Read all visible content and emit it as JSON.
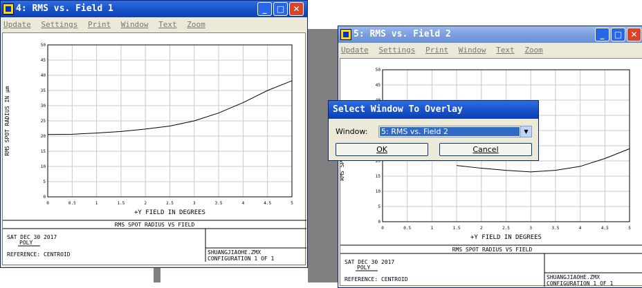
{
  "window1": {
    "title": "4: RMS vs. Field 1",
    "menu": [
      "Update",
      "Settings",
      "Print",
      "Window",
      "Text",
      "Zoom"
    ],
    "footer": {
      "caption": "RMS SPOT RADIUS VS FIELD",
      "date": "SAT DEC 30 2017",
      "mode": "POLY",
      "reference": "REFERENCE: CENTROID",
      "file": "SHUANGJIAOHE.ZMX",
      "config": "CONFIGURATION 1 OF 1"
    }
  },
  "window2": {
    "title": "5: RMS vs. Field 2",
    "menu": [
      "Update",
      "Settings",
      "Print",
      "Window",
      "Text",
      "Zoom"
    ],
    "footer": {
      "caption": "RMS SPOT RADIUS VS FIELD",
      "date": "SAT DEC 30 2017",
      "mode": "POLY",
      "reference": "REFERENCE: CENTROID",
      "file": "SHUANGJIAOHE.ZMX",
      "config": "CONFIGURATION 1 OF 1"
    }
  },
  "dialog": {
    "title": "Select Window To Overlay",
    "label": "Window:",
    "selected": "5: RMS vs. Field 2",
    "ok": "OK",
    "cancel": "Cancel"
  },
  "chart_data": [
    {
      "type": "line",
      "xlabel": "+Y FIELD IN DEGREES",
      "ylabel": "RMS SPOT RADIUS IN µm",
      "xlim": [
        0,
        5
      ],
      "ylim": [
        0,
        50
      ],
      "xticks": [
        "0",
        "0.5",
        "1",
        "1.5",
        "2",
        "2.5",
        "3",
        "3.5",
        "4",
        "4.5",
        "5"
      ],
      "yticks": [
        "0",
        "5",
        "10",
        "15",
        "20",
        "25",
        "30",
        "35",
        "40",
        "45",
        "50"
      ],
      "grid": true,
      "series": [
        {
          "x": [
            0,
            0.5,
            1,
            1.5,
            2,
            2.5,
            3,
            3.5,
            4,
            4.5,
            5
          ],
          "y": [
            20.5,
            20.6,
            21.0,
            21.5,
            22.3,
            23.3,
            25.0,
            27.6,
            31.0,
            35.0,
            38.2
          ]
        }
      ]
    },
    {
      "type": "line",
      "xlabel": "+Y FIELD IN DEGREES",
      "ylabel": "RMS SPOT RADIUS IN µm",
      "xlim": [
        0,
        5
      ],
      "ylim": [
        0,
        50
      ],
      "xticks": [
        "0",
        "0.5",
        "1",
        "1.5",
        "2",
        "2.5",
        "3",
        "3.5",
        "4",
        "4.5",
        "5"
      ],
      "yticks": [
        "0",
        "5",
        "10",
        "15",
        "20",
        "25",
        "30",
        "35",
        "40",
        "45",
        "50"
      ],
      "grid": true,
      "series": [
        {
          "x": [
            1.5,
            2,
            2.5,
            3,
            3.5,
            4,
            4.5,
            5
          ],
          "y": [
            18.5,
            17.6,
            16.9,
            16.4,
            16.9,
            18.2,
            20.8,
            24.0
          ]
        }
      ]
    }
  ]
}
